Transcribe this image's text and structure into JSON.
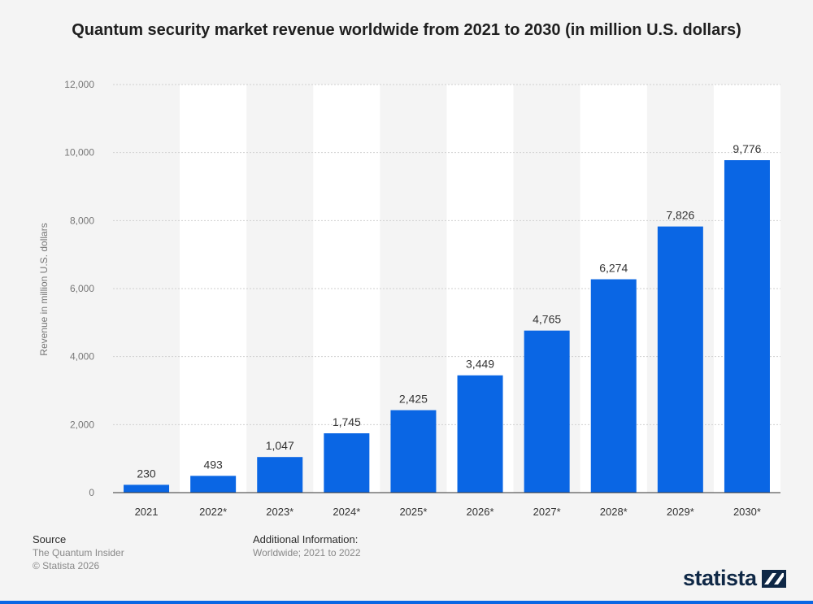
{
  "title": "Quantum security market revenue worldwide from 2021 to 2030 (in million U.S. dollars)",
  "colors": {
    "bar": "#0a66e4",
    "band": "#ffffff",
    "grid": "#cfcfcf",
    "text": "#333333",
    "tick": "#777777"
  },
  "chart_data": {
    "type": "bar",
    "categories": [
      "2021",
      "2022*",
      "2023*",
      "2024*",
      "2025*",
      "2026*",
      "2027*",
      "2028*",
      "2029*",
      "2030*"
    ],
    "values": [
      230,
      493,
      1047,
      1745,
      2425,
      3449,
      4765,
      6274,
      7826,
      9776
    ],
    "value_labels": [
      "230",
      "493",
      "1,047",
      "1,745",
      "2,425",
      "3,449",
      "4,765",
      "6,274",
      "7,826",
      "9,776"
    ],
    "ylabel": "Revenue in million U.S. dollars",
    "ylim": [
      0,
      12000
    ],
    "yticks": [
      0,
      2000,
      4000,
      6000,
      8000,
      10000,
      12000
    ],
    "ytick_labels": [
      "0",
      "2,000",
      "4,000",
      "6,000",
      "8,000",
      "10,000",
      "12,000"
    ],
    "grid": true
  },
  "footer": {
    "source_heading": "Source",
    "source": "The Quantum Insider",
    "copyright": "© Statista 2026",
    "info_heading": "Additional Information:",
    "info": "Worldwide; 2021 to 2022"
  },
  "brand": {
    "name": "statista",
    "icon": "statista-logo-icon"
  }
}
